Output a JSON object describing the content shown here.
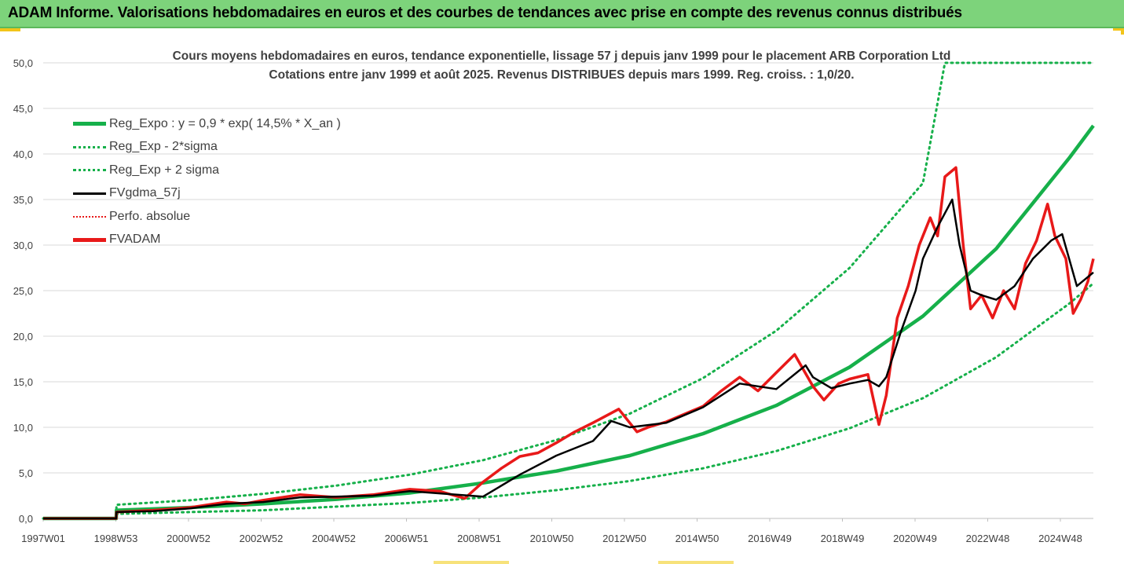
{
  "header": {
    "title": "ADAM Informe. Valorisations hebdomadaires en euros et des courbes de tendances avec prise en compte des revenus connus distribués"
  },
  "colors": {
    "banner_bg": "#7dd37b",
    "accent_yellow": "#f2c419",
    "trend_green": "#16b04a",
    "price_red": "#e81919",
    "ma_black": "#000000",
    "axis_text": "#404040"
  },
  "chart_data": {
    "type": "line",
    "title": "Cours moyens hebdomadaires en euros, tendance exponentielle, lissage 57 j depuis janv 1999 pour le placement ARB Corporation Ltd",
    "subtitle": "Cotations entre janv 1999 et août 2025.  Revenus DISTRIBUES depuis mars 1999. Reg. croiss. : 1,0/20.",
    "xlabel": "",
    "ylabel": "",
    "ylim": [
      0,
      50
    ],
    "yticks": [
      "0,0",
      "5,0",
      "10,0",
      "15,0",
      "20,0",
      "25,0",
      "30,0",
      "35,0",
      "40,0",
      "45,0",
      "50,0"
    ],
    "xticks": [
      "1997W01",
      "1998W53",
      "2000W52",
      "2002W52",
      "2004W52",
      "2006W51",
      "2008W51",
      "2010W50",
      "2012W50",
      "2014W50",
      "2016W49",
      "2018W49",
      "2020W49",
      "2022W48",
      "2024W48"
    ],
    "xlim_years": [
      1997.0,
      2025.65
    ],
    "grid": true,
    "legend_position": "top-left",
    "series": [
      {
        "name": "Reg_Expo : y = 0,9 * exp( 14,5% *  X_an )",
        "style": "solid-green-thick",
        "x": [
          1997.0,
          1998.99,
          1999.0,
          2001,
          2003,
          2005,
          2007,
          2009,
          2011,
          2013,
          2015,
          2017,
          2019,
          2021,
          2023,
          2025,
          2025.65
        ],
        "y": [
          0,
          0,
          0.9,
          1.2,
          1.6,
          2.1,
          2.8,
          3.9,
          5.2,
          6.9,
          9.3,
          12.4,
          16.6,
          22.2,
          29.6,
          39.6,
          43.1
        ]
      },
      {
        "name": "Reg_Exp - 2*sigma",
        "style": "dotted-green",
        "x": [
          1997.0,
          1998.99,
          1999.0,
          2001,
          2003,
          2005,
          2007,
          2009,
          2011,
          2013,
          2015,
          2017,
          2019,
          2021,
          2023,
          2025,
          2025.65
        ],
        "y": [
          0,
          0,
          0.5,
          0.7,
          0.9,
          1.3,
          1.7,
          2.3,
          3.1,
          4.1,
          5.5,
          7.4,
          9.9,
          13.2,
          17.7,
          23.6,
          25.8
        ]
      },
      {
        "name": "Reg_Exp + 2 sigma",
        "style": "dotted-green",
        "x": [
          1997.0,
          1998.99,
          1999.0,
          2001,
          2003,
          2005,
          2007,
          2009,
          2011,
          2013,
          2015,
          2017,
          2019,
          2021,
          2021.6,
          2022,
          2025.65
        ],
        "y": [
          0,
          0,
          1.5,
          2.0,
          2.7,
          3.6,
          4.8,
          6.4,
          8.6,
          11.5,
          15.4,
          20.6,
          27.5,
          36.8,
          50,
          50,
          50
        ]
      },
      {
        "name": "FVgdma_57j",
        "style": "solid-black",
        "x": [
          1997.0,
          1998.99,
          1999.0,
          2000,
          2001,
          2002,
          2003,
          2004,
          2005,
          2006,
          2007,
          2008,
          2009,
          2010,
          2011,
          2012,
          2012.5,
          2013,
          2014,
          2015,
          2016,
          2017,
          2017.8,
          2018,
          2018.5,
          2019,
          2019.5,
          2019.8,
          2020,
          2020.4,
          2020.8,
          2021,
          2021.4,
          2021.8,
          2022,
          2022.3,
          2022.6,
          2023,
          2023.5,
          2024,
          2024.5,
          2024.8,
          2025.2,
          2025.65
        ],
        "y": [
          0,
          0,
          0.7,
          0.8,
          1.1,
          1.6,
          1.8,
          2.3,
          2.4,
          2.5,
          3.0,
          2.7,
          2.4,
          4.8,
          6.9,
          8.5,
          10.7,
          10.0,
          10.5,
          12.2,
          14.8,
          14.2,
          16.8,
          15.5,
          14.3,
          14.8,
          15.2,
          14.5,
          15.5,
          20.5,
          25.0,
          28.5,
          32.0,
          35.0,
          30.0,
          25.0,
          24.5,
          24.0,
          25.5,
          28.5,
          30.5,
          31.2,
          25.5,
          27.0
        ]
      },
      {
        "name": "Perfo. absolue",
        "style": "dotted-red",
        "x": [],
        "y": []
      },
      {
        "name": "FVADAM",
        "style": "solid-red-thick",
        "x": [
          1997.0,
          1998.99,
          1999.0,
          2000,
          2001,
          2002,
          2002.5,
          2003,
          2004,
          2005,
          2006,
          2007,
          2007.8,
          2008.5,
          2009,
          2009.5,
          2010,
          2010.5,
          2011,
          2011.5,
          2012,
          2012.7,
          2013.2,
          2013.5,
          2014,
          2014.7,
          2015,
          2015.5,
          2016,
          2016.5,
          2017,
          2017.5,
          2018,
          2018.3,
          2018.7,
          2019,
          2019.5,
          2019.8,
          2020.0,
          2020.3,
          2020.6,
          2020.9,
          2021.2,
          2021.4,
          2021.6,
          2021.9,
          2022.1,
          2022.3,
          2022.6,
          2022.9,
          2023.2,
          2023.5,
          2023.8,
          2024.1,
          2024.4,
          2024.6,
          2024.9,
          2025.1,
          2025.3,
          2025.5,
          2025.65
        ],
        "y": [
          0,
          0,
          0.7,
          0.9,
          1.2,
          1.8,
          1.6,
          2.0,
          2.6,
          2.3,
          2.6,
          3.2,
          3.0,
          2.2,
          4.0,
          5.5,
          6.8,
          7.2,
          8.3,
          9.5,
          10.5,
          12.0,
          9.5,
          10.0,
          10.6,
          11.8,
          12.3,
          14.0,
          15.5,
          14.0,
          16.0,
          18.0,
          14.5,
          13.0,
          14.8,
          15.3,
          15.8,
          10.3,
          13.5,
          22.0,
          25.5,
          30.0,
          33.0,
          31.0,
          37.5,
          38.5,
          30.0,
          23.0,
          24.5,
          22.0,
          25.0,
          23.0,
          28.0,
          30.5,
          34.5,
          31.0,
          28.5,
          22.5,
          24.0,
          26.0,
          28.5
        ]
      }
    ]
  }
}
